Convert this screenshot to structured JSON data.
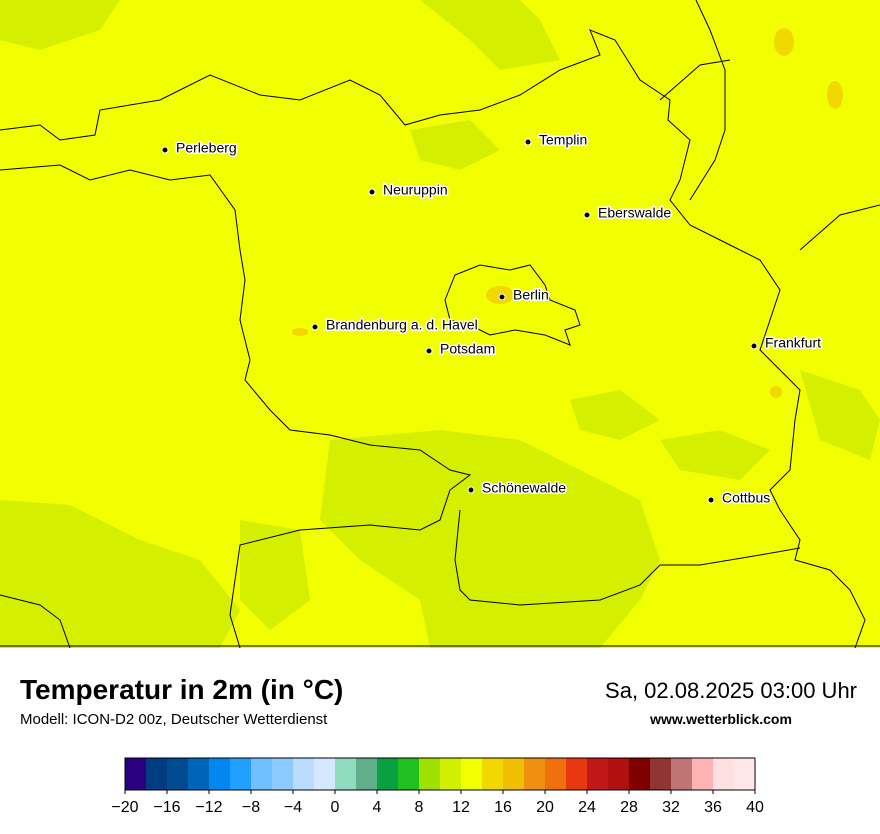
{
  "header": {
    "title": "Temperatur in 2m (in °C)",
    "model": "Modell: ICON-D2 00z, Deutscher Wetterdienst",
    "datetime": "Sa, 02.08.2025 03:00 Uhr",
    "website": "www.wetterblick.com"
  },
  "cities": [
    "Perleberg",
    "Neuruppin",
    "Templin",
    "Eberswalde",
    "Berlin",
    "Brandenburg a. d. Havel",
    "Potsdam",
    "Frankfurt",
    "Schönewalde",
    "Cottbus"
  ],
  "colorbar": {
    "lim": [
      -20,
      40
    ],
    "colors": [
      "#2a0080",
      "#003c80",
      "#004a90",
      "#0064b8",
      "#0088f0",
      "#22a0ff",
      "#70c0ff",
      "#8ccaff",
      "#bcdcff",
      "#d4e8ff",
      "#90dcc0",
      "#60ae8c",
      "#08a040",
      "#20c020",
      "#a0e000",
      "#d0f000",
      "#f2ff00",
      "#f0d800",
      "#f0c000",
      "#f09010",
      "#f07010",
      "#e83810",
      "#c01818",
      "#b01010",
      "#800000",
      "#903434",
      "#c07474",
      "#ffb4b4",
      "#ffe0e0",
      "#ffe8e8"
    ],
    "ticks": [
      {
        "value": -20,
        "label": "−20"
      },
      {
        "value": -16,
        "label": "−16"
      },
      {
        "value": -12,
        "label": "−12"
      },
      {
        "value": -8,
        "label": "−8"
      },
      {
        "value": -4,
        "label": "−4"
      },
      0,
      4,
      8,
      12,
      16,
      20,
      24,
      28,
      32,
      36,
      40
    ]
  }
}
